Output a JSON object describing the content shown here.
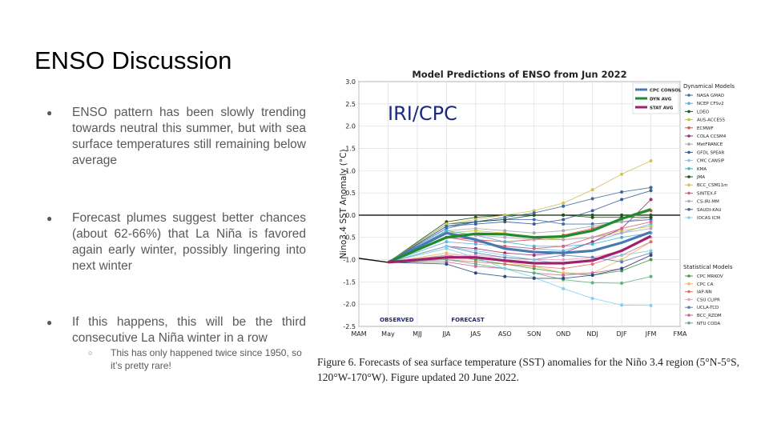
{
  "slide": {
    "title": "ENSO Discussion",
    "bullets": [
      {
        "text": "ENSO pattern has been slowly trending towards neutral this summer, but with sea surface temperatures still remaining below average"
      },
      {
        "text": "Forecast plumes suggest better chances (about 62-66%) that La Niña is favored again early winter, possibly lingering into next winter"
      },
      {
        "text": "If this happens, this will be the third consecutive La Niña winter in a row"
      }
    ],
    "sub_bullet": "This has only happened twice since 1950, so it’s pretty rare!",
    "bullet_glyph": "●",
    "sub_glyph": "○"
  },
  "caption": "Figure 6. Forecasts of sea surface temperature (SST) anomalies for the Niño 3.4 region (5°N-5°S, 120°W-170°W). Figure updated 20 June 2022.",
  "chart_data": {
    "type": "line",
    "title": "Model Predictions of ENSO from Jun 2022",
    "watermark": "IRI/CPC",
    "ylabel": "Nino3.4 SST Anomaly (°C)",
    "xlabel": "",
    "categories": [
      "MAM",
      "May",
      "MJJ",
      "JJA",
      "JAS",
      "ASO",
      "SON",
      "OND",
      "NDJ",
      "DJF",
      "JFM",
      "FMA"
    ],
    "ylim": [
      -2.5,
      3.0
    ],
    "yticks": [
      "-2.5",
      "-2.0",
      "-1.5",
      "-1.0",
      "-0.5",
      "0.0",
      "0.5",
      "1.0",
      "1.5",
      "2.0",
      "2.5",
      "3.0"
    ],
    "observed_label": "OBSERVED",
    "forecast_label": "FORECAST",
    "observed": [
      -0.97,
      -1.06
    ],
    "averages": [
      {
        "name": "CPC CONSOL",
        "color": "#4a78b0",
        "values": [
          -0.4,
          -0.55,
          -0.75,
          -0.83,
          -0.85,
          -0.8,
          -0.62,
          -0.38
        ]
      },
      {
        "name": "DYN AVG",
        "color": "#1e8c2c",
        "values": [
          -0.5,
          -0.42,
          -0.43,
          -0.5,
          -0.48,
          -0.35,
          -0.08,
          0.13
        ]
      },
      {
        "name": "STAT AVG",
        "color": "#a02070",
        "values": [
          -0.95,
          -0.95,
          -1.02,
          -1.08,
          -1.08,
          -1.02,
          -0.8,
          -0.47
        ]
      }
    ],
    "legend_dynamical_title": "Dynamical Models",
    "legend_statistical_title": "Statistical Models",
    "dynamical": [
      {
        "name": "NASA GMAO",
        "color": "#3b6fb0",
        "values": [
          -0.3,
          -0.15,
          -0.1,
          -0.1,
          -0.2,
          -0.2,
          -0.15,
          -0.1
        ]
      },
      {
        "name": "NCEP CFSv2",
        "color": "#5ab4e0",
        "values": [
          -0.6,
          -0.65,
          -0.7,
          -0.75,
          -0.8,
          -0.6,
          -0.4,
          -0.2
        ]
      },
      {
        "name": "LDEO",
        "color": "#1a5c1a",
        "values": [
          -0.15,
          -0.05,
          0.0,
          0.0,
          0.0,
          0.0,
          0.0,
          0.0
        ]
      },
      {
        "name": "AUS-ACCESS",
        "color": "#c8c830",
        "values": [
          -0.4,
          -0.35,
          -0.4,
          -0.5,
          -0.55,
          -0.5,
          -0.35,
          -0.25
        ]
      },
      {
        "name": "ECMWF",
        "color": "#e05050",
        "values": [
          -0.5,
          -0.55,
          -0.6,
          -0.55,
          -0.45,
          -0.3,
          -0.1,
          0.1
        ]
      },
      {
        "name": "COLA CCSM4",
        "color": "#9c3070",
        "values": [
          -0.7,
          -0.75,
          -0.85,
          -0.9,
          -0.85,
          -0.6,
          -0.3,
          0.35
        ]
      },
      {
        "name": "MetFRANCE",
        "color": "#aaaaaa",
        "values": [
          -0.35,
          -0.3,
          -0.35,
          -0.4,
          -0.35,
          -0.25,
          -0.15,
          -0.05
        ]
      },
      {
        "name": "GFDL SPEAR",
        "color": "#3a5c9a",
        "values": [
          -0.25,
          -0.2,
          -0.15,
          -0.2,
          -0.1,
          0.1,
          0.35,
          0.55
        ]
      },
      {
        "name": "CMC CANSIP",
        "color": "#88c8e8",
        "values": [
          -0.7,
          -0.8,
          -0.9,
          -1.0,
          -1.1,
          -1.0,
          -0.9,
          -0.8
        ]
      },
      {
        "name": "KMA",
        "color": "#40b8c8",
        "values": [
          -0.35,
          -0.45,
          -0.6,
          -0.7,
          -0.7,
          -0.65,
          -0.5,
          -0.4
        ]
      },
      {
        "name": "JMA",
        "color": "#205020",
        "values": [
          -0.2,
          -0.15,
          -0.1,
          0.0,
          0.0,
          -0.05,
          -0.05,
          -0.05
        ]
      },
      {
        "name": "BCC_CSM11m",
        "color": "#d0c060",
        "values": [
          -0.2,
          -0.1,
          0.0,
          0.1,
          0.27,
          0.57,
          0.92,
          1.22
        ]
      },
      {
        "name": "SINTEX-F",
        "color": "#d86080",
        "values": [
          -0.5,
          -0.6,
          -0.7,
          -0.75,
          -0.7,
          -0.5,
          -0.3,
          -0.15
        ]
      },
      {
        "name": "CS-IRI-MM",
        "color": "#c0a0c0",
        "values": [
          -0.4,
          -0.45,
          -0.5,
          -0.55,
          -0.55,
          -0.5,
          -0.4,
          -0.3
        ]
      },
      {
        "name": "SAUDI-KAU",
        "color": "#3a6a9a",
        "values": [
          -0.25,
          -0.15,
          -0.05,
          0.05,
          0.2,
          0.37,
          0.52,
          0.62
        ]
      },
      {
        "name": "IOCAS ICM",
        "color": "#80d0f0",
        "values": [
          -0.75,
          -0.95,
          -1.2,
          -1.4,
          -1.65,
          -1.87,
          -2.02,
          -2.03
        ]
      }
    ],
    "statistical": [
      {
        "name": "CPC MRKOV",
        "color": "#40a040",
        "values": [
          -0.9,
          -1.0,
          -1.1,
          -1.2,
          -1.3,
          -1.35,
          -1.25,
          -1.0
        ]
      },
      {
        "name": "CPC CA",
        "color": "#e8c060",
        "values": [
          -0.85,
          -0.95,
          -1.05,
          -1.15,
          -1.3,
          -1.3,
          -1.0,
          -0.6
        ]
      },
      {
        "name": "IAP-NN",
        "color": "#e07070",
        "values": [
          -1.0,
          -1.05,
          -1.1,
          -1.15,
          -1.2,
          -1.1,
          -0.9,
          -0.6
        ]
      },
      {
        "name": "CSU CLIPR",
        "color": "#f0a0c0",
        "values": [
          -0.9,
          -0.9,
          -0.95,
          -1.0,
          -1.0,
          -0.95,
          -0.8,
          -0.5
        ]
      },
      {
        "name": "UCLA-TCD",
        "color": "#6080b0",
        "values": [
          -0.7,
          -0.85,
          -0.95,
          -1.0,
          -0.9,
          -0.95,
          -1.05,
          -0.85
        ]
      },
      {
        "name": "BCC_RZDM",
        "color": "#d060a0",
        "values": [
          -1.05,
          -1.15,
          -1.2,
          -1.3,
          -1.35,
          -1.3,
          -1.2,
          -0.9
        ]
      },
      {
        "name": "NTU CODA",
        "color": "#60b080",
        "values": [
          -1.0,
          -1.1,
          -1.2,
          -1.3,
          -1.45,
          -1.52,
          -1.53,
          -1.38
        ]
      }
    ],
    "extra_dark": {
      "name": "",
      "color": "#2a4a7a",
      "values": [
        -1.1,
        -1.3,
        -1.38,
        -1.42,
        -1.42,
        -1.35,
        -1.2,
        -0.9
      ]
    }
  }
}
